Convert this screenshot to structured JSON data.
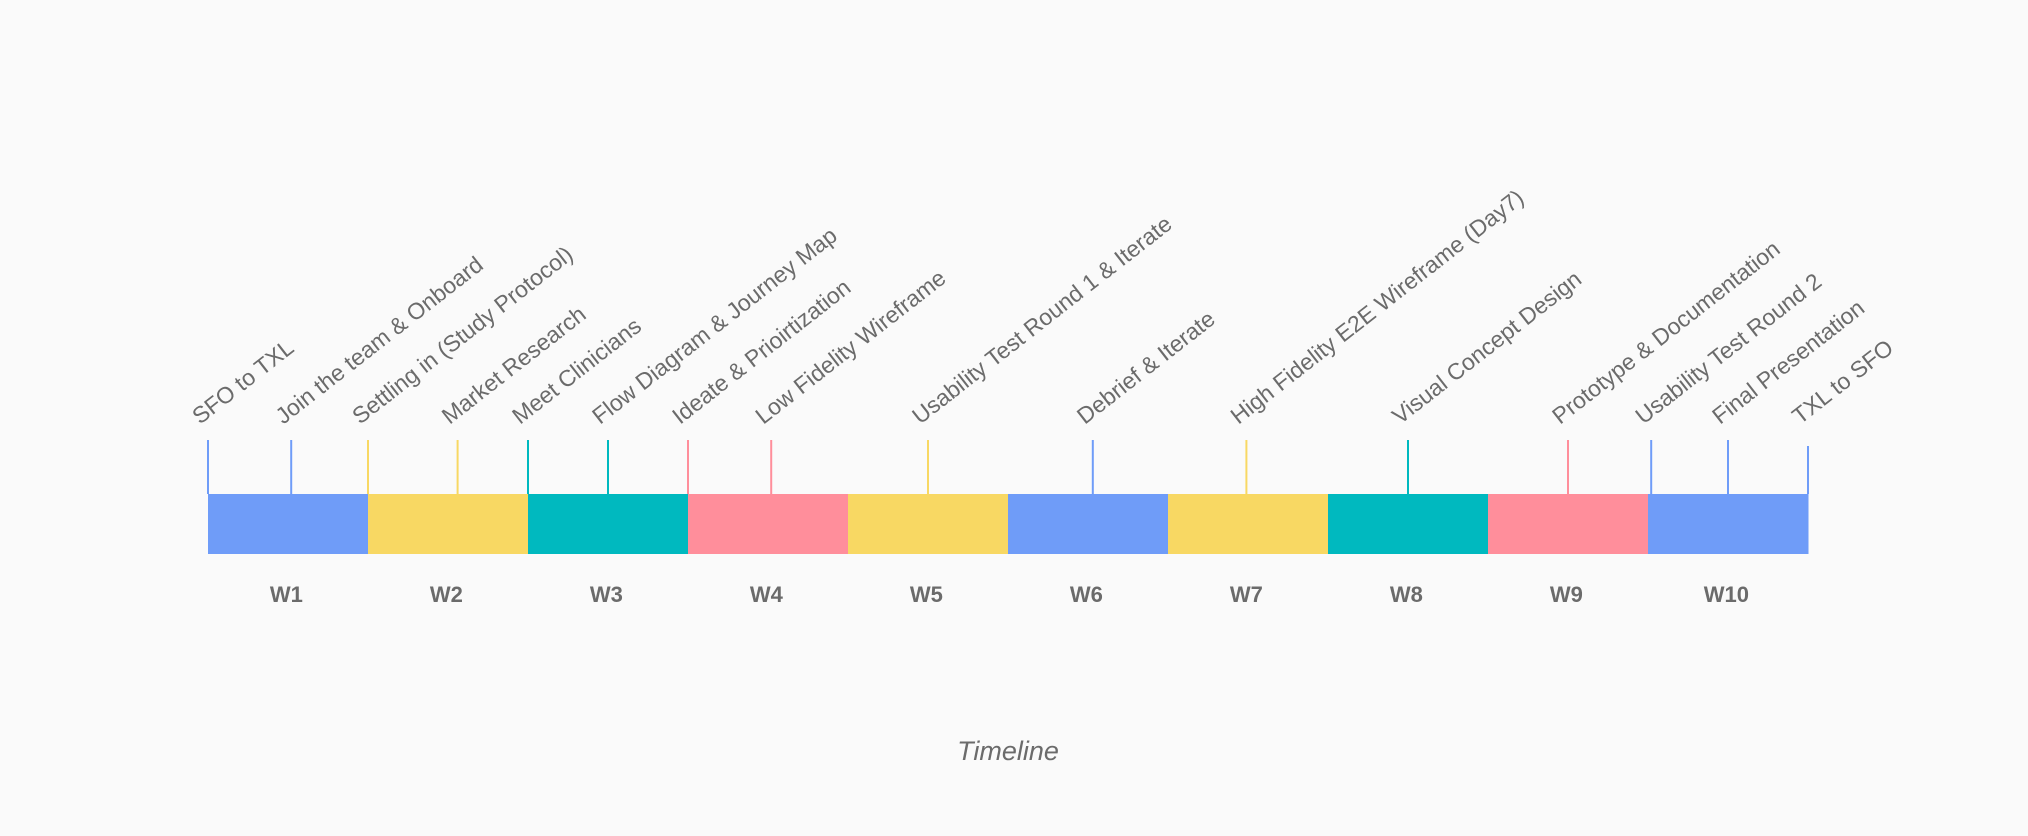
{
  "caption": "Timeline",
  "palette": {
    "blue": "#6f9cf8",
    "yellow": "#f8d863",
    "teal": "#00b9bf",
    "pink": "#ff8e9b",
    "text": "#6b6b6b"
  },
  "weeks": [
    {
      "label": "W1",
      "color": "blue"
    },
    {
      "label": "W2",
      "color": "yellow"
    },
    {
      "label": "W3",
      "color": "teal"
    },
    {
      "label": "W4",
      "color": "pink"
    },
    {
      "label": "W5",
      "color": "yellow"
    },
    {
      "label": "W6",
      "color": "blue"
    },
    {
      "label": "W7",
      "color": "yellow"
    },
    {
      "label": "W8",
      "color": "teal"
    },
    {
      "label": "W9",
      "color": "pink"
    },
    {
      "label": "W10",
      "color": "blue"
    }
  ],
  "milestones": [
    {
      "label": "SFO to TXL",
      "week": 1,
      "position": 0.0,
      "color": "blue"
    },
    {
      "label": "Join the team & Onboard",
      "week": 1,
      "position": 0.52,
      "color": "blue"
    },
    {
      "label": "Settling in (Study Protocol)",
      "week": 2,
      "position": 0.0,
      "color": "yellow"
    },
    {
      "label": "Market Research",
      "week": 2,
      "position": 0.56,
      "color": "yellow"
    },
    {
      "label": "Meet Clinicians",
      "week": 3,
      "position": 0.0,
      "color": "teal"
    },
    {
      "label": "Flow Diagram & Journey Map",
      "week": 3,
      "position": 0.5,
      "color": "teal"
    },
    {
      "label": "Ideate & Prioirtization",
      "week": 4,
      "position": 0.0,
      "color": "pink"
    },
    {
      "label": "Low Fidelity Wireframe",
      "week": 4,
      "position": 0.52,
      "color": "pink"
    },
    {
      "label": "Usability Test Round 1 & Iterate",
      "week": 5,
      "position": 0.5,
      "color": "yellow"
    },
    {
      "label": "Debrief & Iterate",
      "week": 6,
      "position": 0.53,
      "color": "blue"
    },
    {
      "label": "High Fidelity E2E Wireframe (Day7)",
      "week": 7,
      "position": 0.49,
      "color": "yellow"
    },
    {
      "label": "Visual Concept Design",
      "week": 8,
      "position": 0.5,
      "color": "teal"
    },
    {
      "label": "Prototype & Documentation",
      "week": 9,
      "position": 0.5,
      "color": "pink"
    },
    {
      "label": "Usability Test Round 2",
      "week": 10,
      "position": 0.02,
      "color": "blue"
    },
    {
      "label": "Final Presentation",
      "week": 10,
      "position": 0.5,
      "color": "blue"
    },
    {
      "label": "TXL to SFO",
      "week": 10,
      "position": 1.0,
      "color": "blue"
    }
  ]
}
